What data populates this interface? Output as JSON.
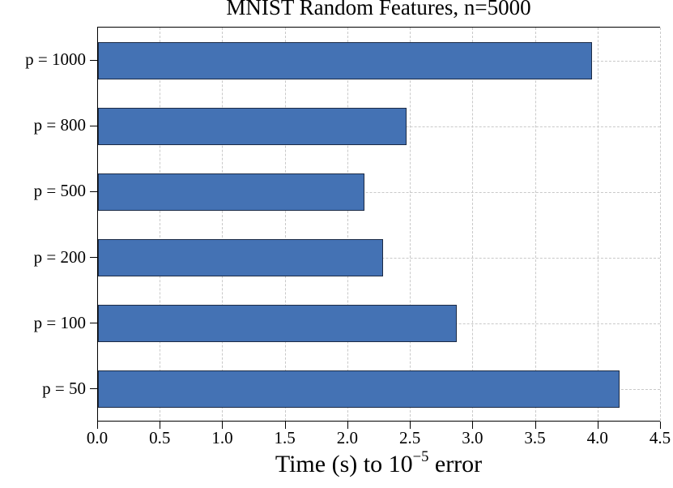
{
  "chart_data": {
    "type": "bar",
    "orientation": "horizontal",
    "title": "MNIST Random Features, n=5000",
    "categories": [
      "p = 1000",
      "p = 800",
      "p = 500",
      "p = 200",
      "p = 100",
      "p = 50"
    ],
    "values": [
      3.95,
      2.47,
      2.13,
      2.28,
      2.87,
      4.17
    ],
    "xlabel": "Time (s) to 10^-5 error",
    "ylabel": "",
    "xlim": [
      0,
      4.5
    ],
    "xticks": [
      0,
      0.5,
      1,
      1.5,
      2,
      2.5,
      3,
      3.5,
      4,
      4.5
    ],
    "xtick_labels": [
      "0.0",
      "0.5",
      "1.0",
      "1.5",
      "2.0",
      "2.5",
      "3.0",
      "3.5",
      "4.0",
      "4.5"
    ],
    "grid": "dashed",
    "legend": "none",
    "colors": {
      "bar_fill": "#4472b4",
      "bar_edge": "#1c2b45",
      "grid_line": "#c9c9c9",
      "spine": "#000000",
      "background": "#ffffff"
    }
  },
  "xlabel_parts": {
    "prefix": "Time (s) to 10",
    "sup": "−5",
    "suffix": " error"
  }
}
